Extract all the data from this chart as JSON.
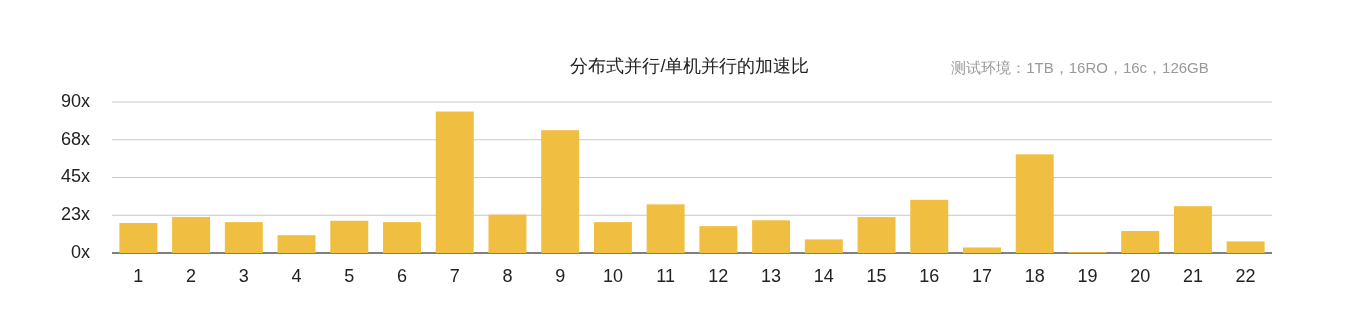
{
  "chart_data": {
    "type": "bar",
    "title": "分布式并行/单机并行的加速比",
    "subtitle": "测试环境：1TB，16RO，16c，126GB",
    "categories": [
      "1",
      "2",
      "3",
      "4",
      "5",
      "6",
      "7",
      "8",
      "9",
      "10",
      "11",
      "12",
      "13",
      "14",
      "15",
      "16",
      "17",
      "18",
      "19",
      "20",
      "21",
      "22"
    ],
    "values": [
      17.9,
      21.4,
      18.4,
      10.6,
      19.2,
      18.4,
      84.3,
      22.9,
      73.2,
      18.4,
      29,
      16,
      19.5,
      8.1,
      21.4,
      31.7,
      3.3,
      58.8,
      0.5,
      13.1,
      27.9,
      6.9
    ],
    "color": "#f0be40",
    "ylim": [
      0,
      90
    ],
    "yticks": [
      {
        "value": 0,
        "label": "0x"
      },
      {
        "value": 22.5,
        "label": "23x"
      },
      {
        "value": 45,
        "label": "45x"
      },
      {
        "value": 67.5,
        "label": "68x"
      },
      {
        "value": 90,
        "label": "90x"
      }
    ],
    "grid": "y"
  }
}
